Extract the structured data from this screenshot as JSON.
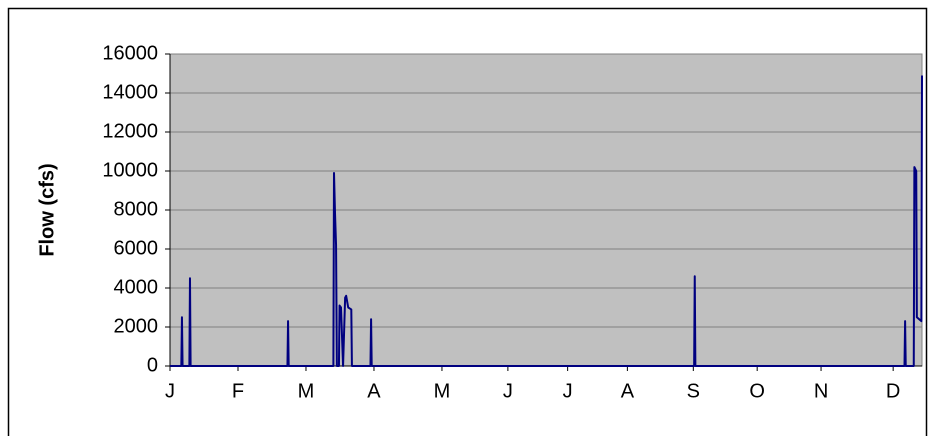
{
  "chart_data": {
    "type": "line",
    "y_label": "Flow (cfs)",
    "x": [
      0,
      5.5,
      5.8,
      6.1,
      9.4,
      9.7,
      10,
      57,
      57.3,
      57.6,
      79.3,
      79.6,
      80.1,
      80.6,
      81,
      82,
      82.3,
      83,
      84,
      85,
      85.5,
      86.5,
      88,
      88.3,
      97.3,
      97.6,
      97.9,
      254.4,
      254.7,
      255,
      356.5,
      356.8,
      357.1,
      361,
      361.3,
      362.2,
      362.5,
      364.7,
      365
    ],
    "series": [
      {
        "name": "Flow",
        "color": "#000080",
        "values": [
          0,
          0,
          2500,
          0,
          0,
          4500,
          0,
          0,
          2300,
          0,
          0,
          9900,
          7800,
          6200,
          0,
          0,
          3100,
          3000,
          0,
          3500,
          3600,
          3000,
          2900,
          0,
          0,
          2400,
          0,
          0,
          4600,
          0,
          0,
          2300,
          0,
          0,
          10200,
          10000,
          2500,
          2300,
          14900
        ]
      }
    ],
    "xlim": [
      0,
      365
    ],
    "xticks": [
      {
        "value": 0,
        "label": "J"
      },
      {
        "value": 33,
        "label": "F"
      },
      {
        "value": 66,
        "label": "M"
      },
      {
        "value": 99,
        "label": "A"
      },
      {
        "value": 132,
        "label": "M"
      },
      {
        "value": 164,
        "label": "J"
      },
      {
        "value": 193,
        "label": "J"
      },
      {
        "value": 222,
        "label": "A"
      },
      {
        "value": 254,
        "label": "S"
      },
      {
        "value": 285,
        "label": "O"
      },
      {
        "value": 316,
        "label": "N"
      },
      {
        "value": 351,
        "label": "D"
      }
    ],
    "ylim": [
      0,
      16000
    ],
    "yticks": [
      0,
      2000,
      4000,
      6000,
      8000,
      10000,
      12000,
      14000,
      16000
    ],
    "grid": true,
    "plot_background": "#c0c0c0"
  }
}
